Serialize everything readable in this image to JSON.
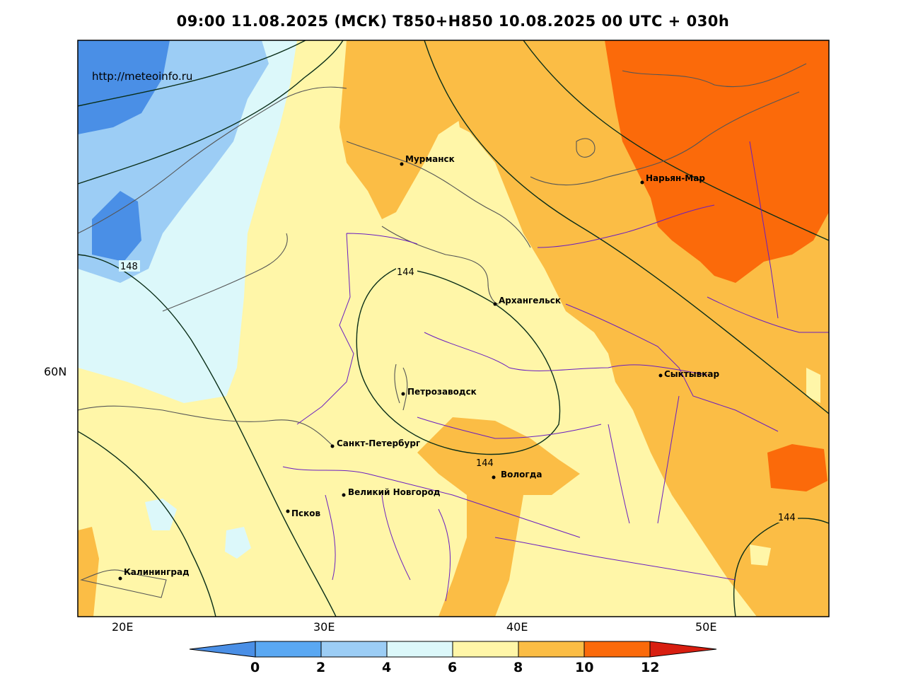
{
  "title": "09:00 11.08.2025 (МСК) T850+H850 10.08.2025 00 UTC + 030h",
  "watermark": "http://meteoinfo.ru",
  "axes": {
    "x_ticks": [
      "20E",
      "30E",
      "40E",
      "50E"
    ],
    "y_ticks": [
      "60N"
    ]
  },
  "cities": [
    {
      "name": "Мурманск"
    },
    {
      "name": "Нарьян-Мар"
    },
    {
      "name": "Архангельск"
    },
    {
      "name": "Сыктывкар"
    },
    {
      "name": "Петрозаводск"
    },
    {
      "name": "Санкт-Петербург"
    },
    {
      "name": "Вологда"
    },
    {
      "name": "Великий Новгород"
    },
    {
      "name": "Псков"
    },
    {
      "name": "Калининград"
    }
  ],
  "isolines": [
    "148",
    "144",
    "144",
    "144"
  ],
  "colorbar": {
    "ticks": [
      "0",
      "2",
      "4",
      "6",
      "8",
      "10",
      "12"
    ],
    "colors": [
      "#4a8fe6",
      "#5aa8f2",
      "#9ccdf5",
      "#dcf8fa",
      "#fff6a8",
      "#fbbd45",
      "#fb6a0a",
      "#d81e10"
    ]
  },
  "palette": {
    "band_0_2": "#4a8fe6",
    "band_2_4": "#9ccdf5",
    "band_4_6": "#dcf8fa",
    "band_6_8": "#fff6a8",
    "band_8_10": "#fbbd45",
    "band_10_12": "#fb6a0a",
    "contour": "#0a2e18",
    "coast": "#555555",
    "border": "#6a1ec0"
  }
}
